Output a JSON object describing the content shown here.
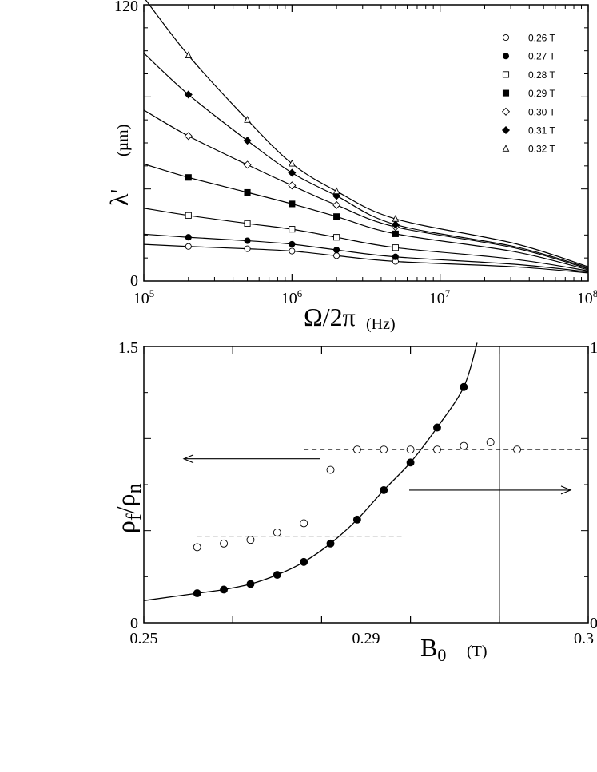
{
  "chart_data": [
    {
      "type": "line",
      "xscale": "log",
      "xlim": [
        100000,
        100000000
      ],
      "ylim": [
        0,
        120
      ],
      "xticks": [
        "10^5",
        "10^6",
        "10^7",
        "10^8"
      ],
      "yticks": [
        "0",
        "120"
      ],
      "ylabel": "λ'",
      "ylabel_unit": "(µm)",
      "xlabel": "Ω/2π",
      "xlabel_unit": "(Hz)",
      "legend_position": "top-right",
      "x": [
        200000,
        500000,
        1000000,
        2000000,
        5000000
      ],
      "series": [
        {
          "name": "0.26 T",
          "marker": "circle-open",
          "values": [
            15,
            14,
            13,
            11,
            8.5
          ]
        },
        {
          "name": "0.27 T",
          "marker": "circle-filled",
          "values": [
            19,
            17.5,
            16,
            13.5,
            10.5
          ]
        },
        {
          "name": "0.28 T",
          "marker": "square-open",
          "values": [
            28.5,
            25,
            22.5,
            19,
            14.5
          ]
        },
        {
          "name": "0.29 T",
          "marker": "square-filled",
          "values": [
            45,
            38.5,
            33.5,
            28,
            20.5
          ]
        },
        {
          "name": "0.30 T",
          "marker": "diamond-open",
          "values": [
            63,
            50.5,
            41.5,
            33,
            23.5
          ]
        },
        {
          "name": "0.31 T",
          "marker": "diamond-filled",
          "values": [
            81,
            61,
            47,
            37,
            24.5
          ]
        },
        {
          "name": "0.32 T",
          "marker": "triangle-open",
          "values": [
            98,
            70,
            51,
            39,
            27
          ]
        }
      ]
    },
    {
      "type": "scatter",
      "xlim": [
        0.25,
        0.3
      ],
      "ylim_left": [
        0,
        1.5
      ],
      "xticks": [
        "0.25",
        "0.29",
        "0.3"
      ],
      "yticks_left": [
        "0",
        "1.5"
      ],
      "yticks_right": [
        "1",
        "0"
      ],
      "ylabel": "ρf/ρn",
      "xlabel": "B0",
      "xlabel_unit": "(T)",
      "vertical_line_x": 0.29,
      "series": [
        {
          "name": "",
          "marker": "circle-filled",
          "axis": "left",
          "x": [
            0.256,
            0.259,
            0.262,
            0.265,
            0.268,
            0.271,
            0.274,
            0.277,
            0.28,
            0.283,
            0.286
          ],
          "values": [
            0.16,
            0.18,
            0.21,
            0.26,
            0.33,
            0.43,
            0.56,
            0.72,
            0.87,
            1.06,
            1.28
          ]
        },
        {
          "name": "",
          "marker": "circle-open",
          "axis": "left",
          "x": [
            0.256,
            0.259,
            0.262,
            0.265,
            0.268,
            0.271,
            0.274,
            0.277,
            0.28,
            0.283,
            0.286,
            0.289,
            0.292
          ],
          "values": [
            0.41,
            0.43,
            0.45,
            0.49,
            0.54,
            0.83,
            0.94,
            0.94,
            0.94,
            0.94,
            0.96,
            0.98,
            0.94
          ]
        }
      ],
      "fit_curve": true,
      "dashed_levels": [
        {
          "y": 0.47,
          "x_from": 0.256,
          "x_to": 0.279
        },
        {
          "y": 0.94,
          "x_from": 0.268,
          "x_to": 0.3
        }
      ]
    }
  ]
}
